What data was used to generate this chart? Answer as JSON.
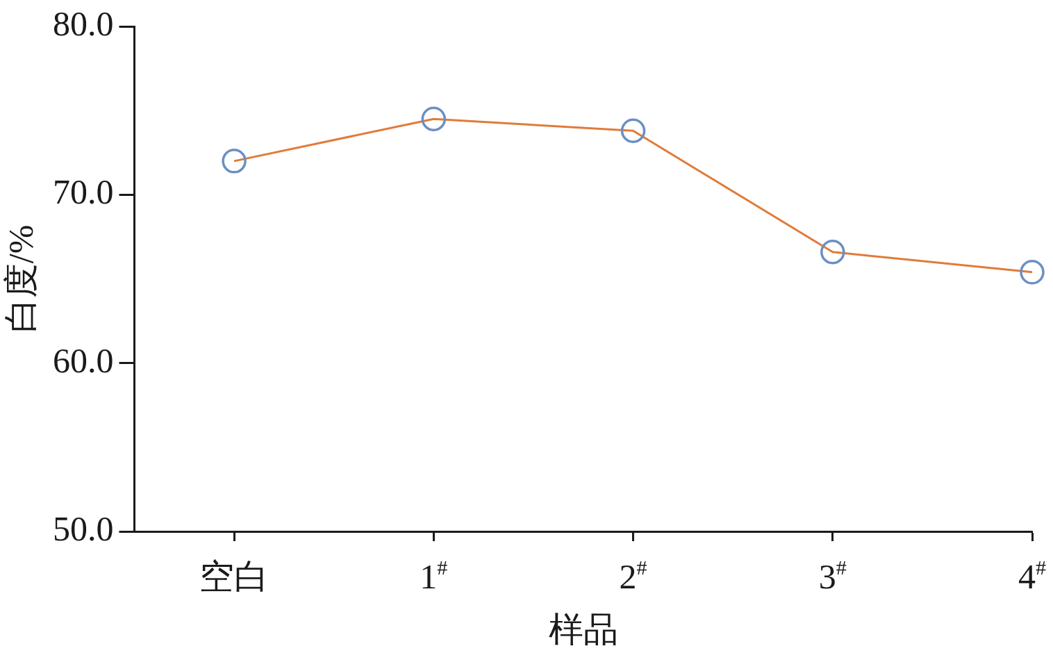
{
  "chart_data": {
    "type": "line",
    "xlabel": "样品",
    "ylabel": "白度/%",
    "categories": [
      "空白",
      "1$^{#}$",
      "2$^{#}$",
      "3$^{#}$",
      "4$^{#}$"
    ],
    "series": [
      {
        "color": "#e07b39",
        "colors": [
          "#6b8fc4",
          "#6b8fc4",
          "#6b8fc4",
          "#6b8fc4",
          "#6b8fc4"
        ],
        "values": [
          72.0,
          74.5,
          73.8,
          66.6,
          65.4
        ]
      }
    ],
    "ylim": [
      50,
      80
    ],
    "yticks": [
      {
        "value": 50,
        "label": "50.0"
      },
      {
        "value": 60,
        "label": "60.0"
      },
      {
        "value": 70,
        "label": "70.0"
      },
      {
        "value": 80,
        "label": "80.0"
      }
    ],
    "grid": false,
    "legend": false,
    "marker": "circle",
    "line_style": "solid"
  }
}
